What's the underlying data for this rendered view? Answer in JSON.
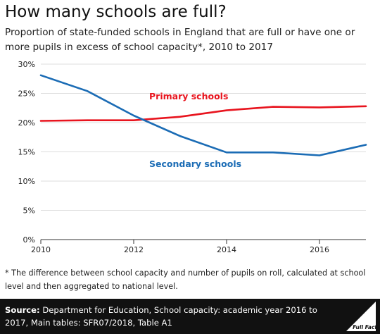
{
  "header": {
    "title": "How many schools are full?",
    "subtitle": "Proportion of state-funded schools in England that are full or have one or more pupils in excess of school capacity*, 2010 to 2017"
  },
  "chart_data": {
    "type": "line",
    "x": [
      2010,
      2011,
      2012,
      2013,
      2014,
      2015,
      2016,
      2017
    ],
    "xticks": [
      2010,
      2012,
      2014,
      2016
    ],
    "ylim": [
      0,
      30
    ],
    "yticks": [
      0,
      5,
      10,
      15,
      20,
      25,
      30
    ],
    "ytick_labels": [
      "0%",
      "5%",
      "10%",
      "15%",
      "20%",
      "25%",
      "30%"
    ],
    "grid": "horizontal",
    "series": [
      {
        "name": "Primary schools",
        "color": "#e8141e",
        "values": [
          20.3,
          20.4,
          20.4,
          21.0,
          22.1,
          22.7,
          22.6,
          22.8
        ]
      },
      {
        "name": "Secondary schools",
        "color": "#1b6cb5",
        "values": [
          28.1,
          25.4,
          21.2,
          17.7,
          14.9,
          14.9,
          14.4,
          16.2
        ]
      }
    ]
  },
  "footnote": "* The difference between school capacity and number of pupils on roll, calculated at school level and then aggregated to national level.",
  "footer": {
    "source_label": "Source:",
    "source_text": "Department for Education, School capacity: academic year 2016 to 2017, Main tables: SFR07/2018, Table A1",
    "logo_text": "Full Fact"
  }
}
